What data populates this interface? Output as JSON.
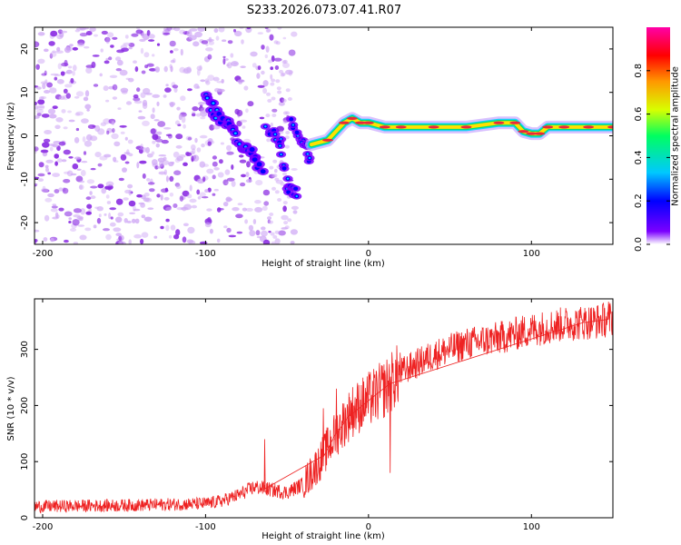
{
  "figure_title": "S233.2026.073.07.41.R07",
  "colors": {
    "frame": "#000000",
    "snr_line": "#ee2222",
    "spectrogram_scatter": "#8a2be2",
    "spectrogram_scatter_light": "#cfa8f5",
    "ridge_core": "#e8283c",
    "ridge_mid": "#ffe000",
    "ridge_outer": "#00e070",
    "ridge_edge": "#1ad0ff",
    "ridge_halo": "#c9a6ff"
  },
  "chart_data": [
    {
      "type": "heatmap",
      "name": "spectrogram",
      "title": "S233.2026.073.07.41.R07",
      "xlabel": "Height of straight line (km)",
      "ylabel": "Frequency (Hz)",
      "xlim": [
        -205,
        150
      ],
      "ylim": [
        -25,
        25
      ],
      "xticks": [
        -200,
        -100,
        0,
        100
      ],
      "xtick_labels": [
        "-200",
        "-100",
        "0",
        "100"
      ],
      "yticks": [
        -20,
        -10,
        0,
        10,
        20
      ],
      "ytick_labels": [
        "-20",
        "-10",
        "0",
        "10",
        "20"
      ],
      "colorbar": {
        "label": "Normalized spectral amplitude",
        "range": [
          0.0,
          1.0
        ],
        "ticks": [
          0.0,
          0.2,
          0.4,
          0.6,
          0.8
        ],
        "tick_labels": [
          "0.0",
          "0.2",
          "0.4",
          "0.6",
          "0.8"
        ],
        "colormap": [
          "#ffffff",
          "#7b00ff",
          "#0000ff",
          "#00c8ff",
          "#00ff60",
          "#d8ff00",
          "#ff9800",
          "#ff0000",
          "#ff00a8"
        ]
      },
      "noise_region_x": [
        -205,
        -45
      ],
      "noise_scatter_points": 850,
      "descending_branch": [
        [
          -100,
          9
        ],
        [
          -93,
          5
        ],
        [
          -85,
          2
        ],
        [
          -78,
          -2
        ],
        [
          -72,
          -4
        ],
        [
          -65,
          -8
        ]
      ],
      "secondary_branch": [
        [
          -62,
          2
        ],
        [
          -55,
          -1
        ],
        [
          -50,
          -12
        ],
        [
          -45,
          -13
        ]
      ],
      "short_branch": [
        [
          -48,
          3
        ],
        [
          -40,
          -1
        ],
        [
          -35,
          -6
        ]
      ],
      "tone_ridge": [
        [
          -35,
          -2
        ],
        [
          -25,
          -1
        ],
        [
          -15,
          3
        ],
        [
          -10,
          4
        ],
        [
          -5,
          3
        ],
        [
          0,
          3
        ],
        [
          10,
          2
        ],
        [
          20,
          2
        ],
        [
          40,
          2
        ],
        [
          60,
          2
        ],
        [
          80,
          3
        ],
        [
          90,
          3
        ],
        [
          95,
          1
        ],
        [
          100,
          0.5
        ],
        [
          105,
          0.5
        ],
        [
          110,
          2
        ],
        [
          120,
          2
        ],
        [
          135,
          2
        ],
        [
          150,
          2
        ]
      ]
    },
    {
      "type": "line",
      "name": "snr",
      "xlabel": "Height of straight line (km)",
      "ylabel": "SNR (10 * v/v)",
      "xlim": [
        -205,
        150
      ],
      "ylim": [
        0,
        390
      ],
      "xticks": [
        -200,
        -100,
        0,
        100
      ],
      "xtick_labels": [
        "-200",
        "-100",
        "0",
        "100"
      ],
      "yticks": [
        0,
        100,
        200,
        300
      ],
      "ytick_labels": [
        "0",
        "100",
        "200",
        "300"
      ],
      "series": [
        {
          "name": "SNR",
          "color": "#ee2222",
          "trend": {
            "x": [
              -205,
              -150,
              -100,
              -90,
              -80,
              -70,
              -60,
              -50,
              -40,
              -30,
              -20,
              -10,
              0,
              10,
              20,
              40,
              60,
              80,
              100,
              120,
              140,
              150
            ],
            "y": [
              20,
              22,
              25,
              30,
              40,
              55,
              50,
              45,
              60,
              100,
              150,
              190,
              210,
              230,
              260,
              290,
              310,
              320,
              335,
              345,
              350,
              355
            ]
          },
          "noise_amplitude": 25,
          "spikes": [
            [
              -64,
              140
            ],
            [
              -28,
              195
            ],
            [
              -20,
              230
            ],
            [
              -12,
              215
            ],
            [
              13,
              80
            ],
            [
              132,
              365
            ],
            [
              147,
              385
            ]
          ]
        }
      ]
    }
  ]
}
